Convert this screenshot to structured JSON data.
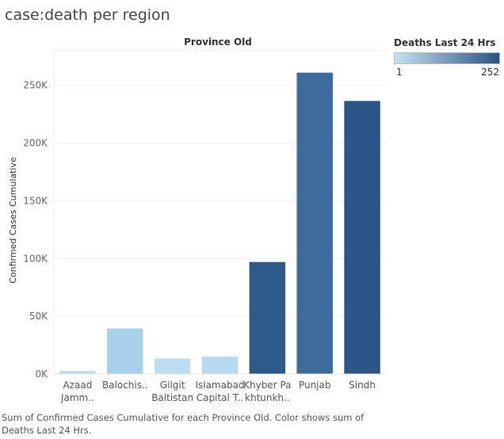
{
  "title": "case:death per region",
  "caption": "Sum of Confirmed Cases Cumulative for each Province Old.  Color shows sum of Deaths Last 24 Hrs.",
  "legend": {
    "title": "Deaths Last 24 Hrs",
    "min_label": "1",
    "max_label": "252",
    "color_low": "#c6e2f3",
    "color_high": "#2a5283"
  },
  "chart_data": {
    "type": "bar",
    "xlabel": "Province Old",
    "ylabel": "Confirmed Cases Cumulative",
    "ylim": [
      0,
      280000
    ],
    "yticks": [
      0,
      50000,
      100000,
      150000,
      200000,
      250000
    ],
    "ytick_labels": [
      "0K",
      "50K",
      "100K",
      "150K",
      "200K",
      "250K"
    ],
    "grid": true,
    "categories": [
      [
        "Azaad",
        "Jamm.."
      ],
      [
        "Balochis.."
      ],
      [
        "Gilgit",
        "Baltistan"
      ],
      [
        "Islamabad",
        "Capital T.."
      ],
      [
        "Khyber Pa",
        "khtunkh.."
      ],
      [
        "Punjab"
      ],
      [
        "Sindh"
      ]
    ],
    "values": [
      2700,
      39500,
      13500,
      15000,
      97000,
      261000,
      236500
    ],
    "colors": [
      "#bcdcf0",
      "#a9d0ea",
      "#bcdcf0",
      "#b7d9ef",
      "#2e5a8a",
      "#3d6b9b",
      "#2c568a"
    ]
  }
}
